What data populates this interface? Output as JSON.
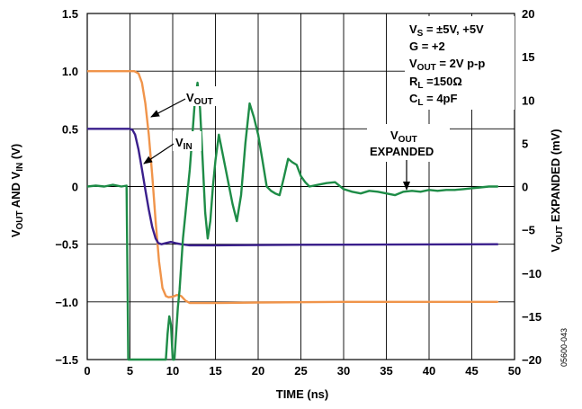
{
  "chart_data": {
    "type": "line",
    "xlabel": "TIME (ns)",
    "ylabel_left": {
      "main": "V",
      "sub1": "OUT",
      "mid": " AND V",
      "sub2": "IN",
      "end": " (V)"
    },
    "ylabel_right": {
      "main": "V",
      "sub": "OUT",
      "end": " EXPANDED (mV)"
    },
    "xlim": [
      0,
      50
    ],
    "ylim_left": [
      -1.5,
      1.5
    ],
    "ylim_right": [
      -20,
      20
    ],
    "x_ticks": [
      "0",
      "5",
      "10",
      "15",
      "20",
      "25",
      "30",
      "35",
      "40",
      "45",
      "50"
    ],
    "y_ticks_left": [
      "1.5",
      "1.0",
      "0.5",
      "0",
      "−0.5",
      "−1.0",
      "−1.5"
    ],
    "y_ticks_right": [
      "20",
      "15",
      "10",
      "5",
      "0",
      "−5",
      "−10",
      "−15",
      "−20"
    ],
    "grid": true,
    "conditions": [
      {
        "main": "V",
        "sub": "S",
        "rest": " = ±5V, +5V"
      },
      {
        "main": "G = +2",
        "sub": "",
        "rest": ""
      },
      {
        "main": "V",
        "sub": "OUT",
        "rest": " = 2V p-p"
      },
      {
        "main": "R",
        "sub": "L",
        "rest": " =150Ω"
      },
      {
        "main": "C",
        "sub": "L",
        "rest": " = 4pF"
      }
    ],
    "annotations": {
      "vout": {
        "main": "V",
        "sub": "OUT"
      },
      "vin": {
        "main": "V",
        "sub": "IN"
      },
      "expanded_line1": {
        "main": "V",
        "sub": "OUT"
      },
      "expanded_line2": "EXPANDED"
    },
    "figure_id": "05600-043",
    "series": [
      {
        "axis": "left",
        "color": "#f0944a",
        "x": [
          0,
          5.5,
          6.0,
          6.4,
          6.8,
          7.2,
          7.6,
          8.0,
          8.4,
          8.8,
          9.2,
          9.5,
          10.0,
          10.5,
          11.0,
          11.5,
          12.0,
          13,
          15,
          20,
          30,
          48
        ],
        "y": [
          1.0,
          1.0,
          0.98,
          0.9,
          0.72,
          0.45,
          0.1,
          -0.3,
          -0.65,
          -0.88,
          -0.95,
          -0.96,
          -0.955,
          -0.94,
          -0.95,
          -0.99,
          -1.01,
          -1.01,
          -1.01,
          -1.005,
          -1.0,
          -1.0
        ]
      },
      {
        "axis": "left",
        "color": "#3a1f8c",
        "x": [
          0,
          4.5,
          5.0,
          5.3,
          5.6,
          6.0,
          6.4,
          6.8,
          7.2,
          7.6,
          8.0,
          8.3,
          8.7,
          9.2,
          9.8,
          10.3,
          11.0,
          12,
          15,
          25,
          48
        ],
        "y": [
          0.5,
          0.5,
          0.5,
          0.49,
          0.45,
          0.32,
          0.15,
          -0.03,
          -0.2,
          -0.35,
          -0.45,
          -0.49,
          -0.5,
          -0.49,
          -0.48,
          -0.49,
          -0.5,
          -0.51,
          -0.51,
          -0.505,
          -0.5
        ],
        "vin_lead": {
          "x": [
            0,
            5.0,
            5.05
          ],
          "y": [
            0.5,
            0.5,
            0.5
          ]
        }
      },
      {
        "axis": "right",
        "color": "#1e8c47",
        "x": [
          0,
          1,
          2,
          3,
          4,
          4.6,
          4.8,
          4.85,
          9.2,
          9.4,
          9.6,
          9.8,
          10.0,
          10.2,
          10.4,
          10.6,
          10.8,
          11.0,
          11.2,
          11.5,
          11.8,
          12.0,
          12.3,
          12.6,
          12.9,
          13.2,
          13.5,
          13.8,
          14.1,
          14.4,
          14.7,
          15.0,
          15.4,
          15.8,
          16.2,
          16.6,
          17.0,
          17.5,
          18.0,
          18.5,
          19.0,
          19.5,
          20.0,
          20.5,
          21.0,
          21.5,
          22.0,
          22.5,
          23.0,
          23.5,
          24.0,
          24.5,
          25.0,
          25.5,
          26.0,
          27,
          28,
          29,
          30,
          31,
          32,
          33,
          34,
          35,
          36,
          37,
          38,
          39,
          40,
          41,
          42,
          43,
          44,
          45,
          46,
          47,
          48
        ],
        "y": [
          0,
          0.1,
          0,
          0.2,
          0,
          0.1,
          -20,
          -20,
          -20,
          -17,
          -15,
          -16,
          -20,
          -20,
          -17,
          -14,
          -12,
          -9,
          -6,
          -3,
          0,
          2,
          6,
          10,
          12,
          9,
          3,
          -3,
          -6,
          -4,
          0,
          3.0,
          6,
          4,
          2,
          0,
          -2,
          -4,
          -1,
          5,
          9.6,
          8,
          6,
          3,
          0,
          -0.5,
          -0.8,
          -1,
          1.0,
          3.2,
          2.8,
          2.5,
          1.2,
          0.5,
          0,
          0.2,
          0.4,
          0.5,
          -0.3,
          -0.6,
          -0.8,
          -0.5,
          -0.6,
          -0.8,
          -1.0,
          -0.6,
          -0.5,
          -0.6,
          -0.4,
          -0.5,
          -0.4,
          -0.4,
          -0.3,
          -0.2,
          -0.1,
          0,
          0
        ]
      }
    ]
  }
}
